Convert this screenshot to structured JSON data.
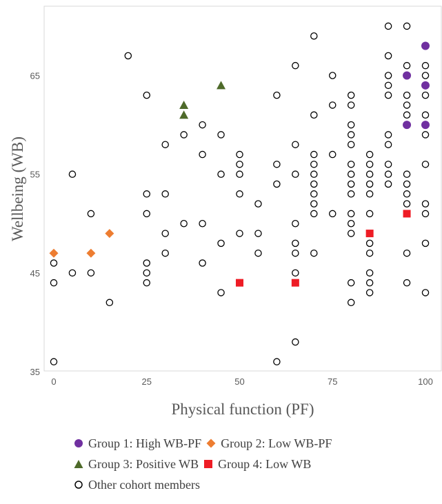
{
  "chart_data": {
    "type": "scatter",
    "xlabel": "Physical function (PF)",
    "ylabel": "Wellbeing (WB)",
    "xlim": [
      0,
      100
    ],
    "ylim": [
      35,
      72
    ],
    "xticks": [
      "0",
      "25",
      "50",
      "75",
      "100"
    ],
    "yticks": [
      "35",
      "45",
      "55",
      "65"
    ],
    "legend_position": "bottom",
    "series": [
      {
        "name": "Group 1: High WB-PF",
        "marker": "circle-filled",
        "color": "#7030a0",
        "points": [
          [
            95,
            65
          ],
          [
            95,
            60
          ],
          [
            100,
            68
          ],
          [
            100,
            64
          ],
          [
            100,
            60
          ]
        ]
      },
      {
        "name": "Group 2: Low WB-PF",
        "marker": "diamond",
        "color": "#ed7d31",
        "points": [
          [
            0,
            47
          ],
          [
            10,
            47
          ],
          [
            15,
            49
          ]
        ]
      },
      {
        "name": "Group 3: Positive WB",
        "marker": "triangle",
        "color": "#4e6a2a",
        "points": [
          [
            35,
            62
          ],
          [
            35,
            61
          ],
          [
            45,
            64
          ]
        ]
      },
      {
        "name": "Group 4: Low WB",
        "marker": "square",
        "color": "#ee1c25",
        "points": [
          [
            50,
            44
          ],
          [
            65,
            44
          ],
          [
            85,
            49
          ],
          [
            95,
            51
          ]
        ]
      },
      {
        "name": "Other cohort members",
        "marker": "circle-open",
        "color": "#000000",
        "points": [
          [
            0,
            46
          ],
          [
            0,
            44
          ],
          [
            0,
            36
          ],
          [
            5,
            55
          ],
          [
            5,
            45
          ],
          [
            10,
            51
          ],
          [
            10,
            45
          ],
          [
            15,
            42
          ],
          [
            20,
            67
          ],
          [
            25,
            63
          ],
          [
            25,
            53
          ],
          [
            25,
            51
          ],
          [
            25,
            46
          ],
          [
            25,
            45
          ],
          [
            25,
            44
          ],
          [
            30,
            58
          ],
          [
            30,
            53
          ],
          [
            30,
            49
          ],
          [
            30,
            47
          ],
          [
            35,
            59
          ],
          [
            35,
            50
          ],
          [
            40,
            60
          ],
          [
            40,
            57
          ],
          [
            40,
            50
          ],
          [
            40,
            46
          ],
          [
            45,
            59
          ],
          [
            45,
            55
          ],
          [
            45,
            48
          ],
          [
            45,
            43
          ],
          [
            50,
            57
          ],
          [
            50,
            56
          ],
          [
            50,
            55
          ],
          [
            50,
            53
          ],
          [
            50,
            49
          ],
          [
            55,
            52
          ],
          [
            55,
            49
          ],
          [
            55,
            47
          ],
          [
            60,
            63
          ],
          [
            60,
            56
          ],
          [
            60,
            54
          ],
          [
            60,
            36
          ],
          [
            65,
            66
          ],
          [
            65,
            58
          ],
          [
            65,
            55
          ],
          [
            65,
            50
          ],
          [
            65,
            48
          ],
          [
            65,
            47
          ],
          [
            65,
            45
          ],
          [
            65,
            38
          ],
          [
            70,
            69
          ],
          [
            70,
            61
          ],
          [
            70,
            57
          ],
          [
            70,
            56
          ],
          [
            70,
            55
          ],
          [
            70,
            54
          ],
          [
            70,
            53
          ],
          [
            70,
            52
          ],
          [
            70,
            51
          ],
          [
            70,
            47
          ],
          [
            75,
            65
          ],
          [
            75,
            62
          ],
          [
            75,
            57
          ],
          [
            75,
            51
          ],
          [
            80,
            63
          ],
          [
            80,
            62
          ],
          [
            80,
            60
          ],
          [
            80,
            59
          ],
          [
            80,
            58
          ],
          [
            80,
            56
          ],
          [
            80,
            55
          ],
          [
            80,
            54
          ],
          [
            80,
            53
          ],
          [
            80,
            51
          ],
          [
            80,
            50
          ],
          [
            80,
            49
          ],
          [
            80,
            44
          ],
          [
            80,
            42
          ],
          [
            85,
            57
          ],
          [
            85,
            56
          ],
          [
            85,
            55
          ],
          [
            85,
            54
          ],
          [
            85,
            53
          ],
          [
            85,
            51
          ],
          [
            85,
            48
          ],
          [
            85,
            47
          ],
          [
            85,
            45
          ],
          [
            85,
            44
          ],
          [
            85,
            43
          ],
          [
            90,
            70
          ],
          [
            90,
            67
          ],
          [
            90,
            65
          ],
          [
            90,
            64
          ],
          [
            90,
            63
          ],
          [
            90,
            59
          ],
          [
            90,
            58
          ],
          [
            90,
            56
          ],
          [
            90,
            55
          ],
          [
            90,
            54
          ],
          [
            95,
            70
          ],
          [
            95,
            66
          ],
          [
            95,
            63
          ],
          [
            95,
            62
          ],
          [
            95,
            61
          ],
          [
            95,
            55
          ],
          [
            95,
            54
          ],
          [
            95,
            53
          ],
          [
            95,
            52
          ],
          [
            95,
            47
          ],
          [
            95,
            44
          ],
          [
            100,
            66
          ],
          [
            100,
            65
          ],
          [
            100,
            63
          ],
          [
            100,
            61
          ],
          [
            100,
            59
          ],
          [
            100,
            56
          ],
          [
            100,
            52
          ],
          [
            100,
            51
          ],
          [
            100,
            48
          ],
          [
            100,
            43
          ]
        ]
      }
    ]
  }
}
